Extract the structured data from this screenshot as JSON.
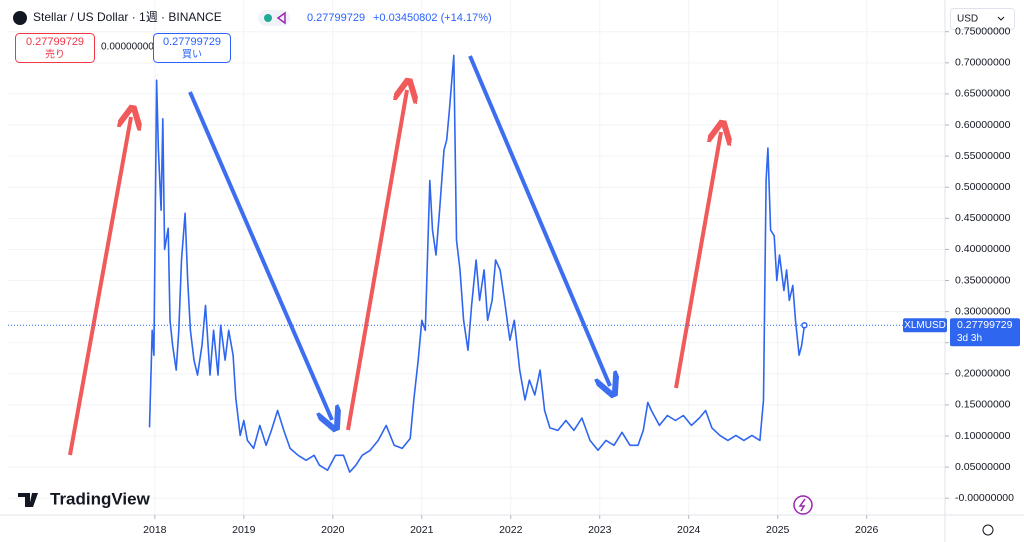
{
  "header": {
    "title": "Stellar / US Dollar · 1週 · BINANCE",
    "price": "0.27799729",
    "change": "+0.03450802 (+14.17%)",
    "sell_label": "売り",
    "spread": "0.00000000",
    "buy_label": "買い",
    "currency": "USD",
    "logo": "TradingView",
    "countdown": "3d 3h"
  },
  "chart_data": {
    "type": "line",
    "x": [
      2017.94,
      2017.97,
      2017.99,
      2018.02,
      2018.04,
      2018.07,
      2018.09,
      2018.11,
      2018.15,
      2018.17,
      2018.2,
      2018.24,
      2018.27,
      2018.3,
      2018.34,
      2018.37,
      2018.4,
      2018.44,
      2018.48,
      2018.53,
      2018.57,
      2018.62,
      2018.66,
      2018.71,
      2018.74,
      2018.79,
      2018.83,
      2018.88,
      2018.91,
      2018.96,
      2019.0,
      2019.04,
      2019.11,
      2019.18,
      2019.25,
      2019.31,
      2019.38,
      2019.45,
      2019.52,
      2019.61,
      2019.7,
      2019.79,
      2019.85,
      2019.94,
      2020.03,
      2020.12,
      2020.19,
      2020.26,
      2020.33,
      2020.42,
      2020.51,
      2020.6,
      2020.69,
      2020.78,
      2020.87,
      2020.91,
      2020.96,
      2021.0,
      2021.04,
      2021.09,
      2021.12,
      2021.16,
      2021.2,
      2021.25,
      2021.28,
      2021.31,
      2021.36,
      2021.39,
      2021.43,
      2021.47,
      2021.52,
      2021.56,
      2021.61,
      2021.65,
      2021.7,
      2021.74,
      2021.79,
      2021.83,
      2021.88,
      2021.93,
      2021.99,
      2022.04,
      2022.1,
      2022.16,
      2022.21,
      2022.27,
      2022.33,
      2022.38,
      2022.44,
      2022.53,
      2022.62,
      2022.71,
      2022.8,
      2022.89,
      2022.98,
      2023.07,
      2023.16,
      2023.25,
      2023.34,
      2023.43,
      2023.49,
      2023.54,
      2023.58,
      2023.67,
      2023.76,
      2023.85,
      2023.94,
      2024.03,
      2024.12,
      2024.19,
      2024.26,
      2024.35,
      2024.44,
      2024.53,
      2024.62,
      2024.71,
      2024.8,
      2024.84,
      2024.87,
      2024.89,
      2024.92,
      2024.96,
      2024.99,
      2025.02,
      2025.07,
      2025.1,
      2025.13,
      2025.17,
      2025.2,
      2025.24,
      2025.27,
      2025.3
    ],
    "series": [
      {
        "name": "XLMUSD",
        "color": "#2f66f0",
        "values": [
          0.114,
          0.27,
          0.23,
          0.672,
          0.56,
          0.463,
          0.61,
          0.4,
          0.434,
          0.286,
          0.246,
          0.206,
          0.27,
          0.383,
          0.458,
          0.35,
          0.27,
          0.222,
          0.198,
          0.246,
          0.31,
          0.198,
          0.27,
          0.198,
          0.278,
          0.222,
          0.27,
          0.23,
          0.161,
          0.101,
          0.125,
          0.093,
          0.08,
          0.117,
          0.085,
          0.109,
          0.141,
          0.109,
          0.08,
          0.069,
          0.061,
          0.069,
          0.053,
          0.045,
          0.069,
          0.069,
          0.042,
          0.053,
          0.069,
          0.077,
          0.093,
          0.117,
          0.085,
          0.08,
          0.096,
          0.158,
          0.222,
          0.286,
          0.27,
          0.511,
          0.431,
          0.391,
          0.463,
          0.56,
          0.576,
          0.624,
          0.712,
          0.415,
          0.367,
          0.286,
          0.238,
          0.31,
          0.383,
          0.318,
          0.367,
          0.286,
          0.318,
          0.383,
          0.367,
          0.318,
          0.254,
          0.286,
          0.206,
          0.158,
          0.19,
          0.166,
          0.206,
          0.141,
          0.113,
          0.109,
          0.125,
          0.109,
          0.129,
          0.093,
          0.077,
          0.093,
          0.085,
          0.106,
          0.085,
          0.085,
          0.109,
          0.154,
          0.141,
          0.117,
          0.133,
          0.125,
          0.133,
          0.117,
          0.129,
          0.141,
          0.113,
          0.101,
          0.093,
          0.101,
          0.093,
          0.101,
          0.093,
          0.158,
          0.511,
          0.563,
          0.431,
          0.422,
          0.35,
          0.391,
          0.334,
          0.367,
          0.318,
          0.342,
          0.286,
          0.23,
          0.246,
          0.278
        ]
      }
    ],
    "xlim": [
      2016.35,
      2026.88
    ],
    "xticks": [
      2018,
      2019,
      2020,
      2021,
      2022,
      2023,
      2024,
      2025,
      2026
    ],
    "ylim": [
      -0.027,
      0.801
    ],
    "yticks": [
      {
        "value": 0,
        "label": "-0.00000000"
      },
      {
        "value": 0.05,
        "label": "0.05000000"
      },
      {
        "value": 0.1,
        "label": "0.10000000"
      },
      {
        "value": 0.15,
        "label": "0.15000000"
      },
      {
        "value": 0.2,
        "label": "0.20000000"
      },
      {
        "value": 0.25,
        "label": "0.25000000"
      },
      {
        "value": 0.3,
        "label": "0.30000000"
      },
      {
        "value": 0.35,
        "label": "0.35000000"
      },
      {
        "value": 0.4,
        "label": "0.40000000"
      },
      {
        "value": 0.45,
        "label": "0.45000000"
      },
      {
        "value": 0.5,
        "label": "0.50000000"
      },
      {
        "value": 0.55,
        "label": "0.55000000"
      },
      {
        "value": 0.6,
        "label": "0.60000000"
      },
      {
        "value": 0.65,
        "label": "0.65000000"
      },
      {
        "value": 0.7,
        "label": "0.70000000"
      },
      {
        "value": 0.75,
        "label": "0.75000000"
      }
    ]
  }
}
